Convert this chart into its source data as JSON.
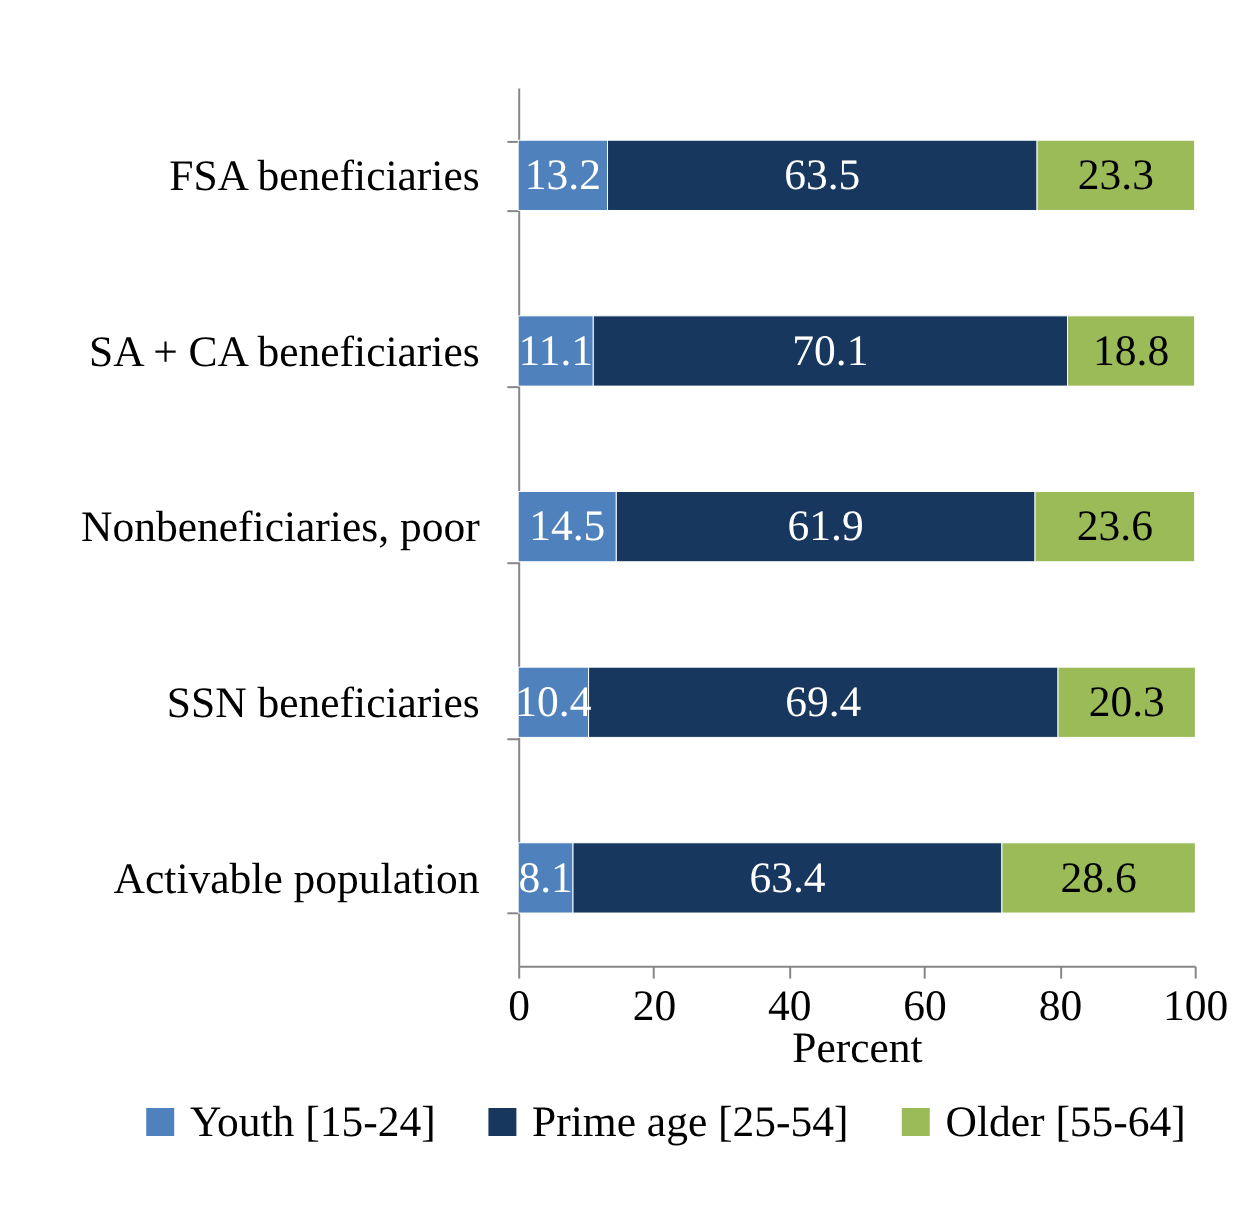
{
  "chart_data": {
    "type": "bar",
    "orientation": "horizontal",
    "stacked": true,
    "categories": [
      "FSA beneficiaries",
      "SA + CA beneficiaries",
      "Nonbeneficiaries, poor",
      "SSN beneficiaries",
      "Activable population"
    ],
    "series": [
      {
        "name": "Youth [15-24]",
        "color": "#4f81bd",
        "values": [
          13.2,
          11.1,
          14.5,
          10.4,
          8.1
        ]
      },
      {
        "name": "Prime age [25-54]",
        "color": "#17375e",
        "values": [
          63.5,
          70.1,
          61.9,
          69.4,
          63.4
        ]
      },
      {
        "name": "Older  [55-64]",
        "color": "#9bbb59",
        "values": [
          23.3,
          18.8,
          23.6,
          20.3,
          28.6
        ]
      }
    ],
    "xlim": [
      0,
      100
    ],
    "xticks": [
      0,
      20,
      40,
      60,
      80,
      100
    ],
    "xlabel": "Percent",
    "legend": "bottom",
    "data_labels": true,
    "grid": false
  }
}
